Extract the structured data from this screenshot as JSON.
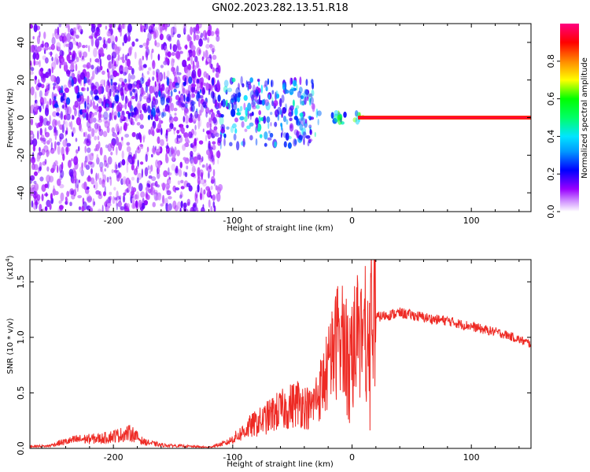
{
  "title": "GN02.2023.282.13.51.R18",
  "chart_data": [
    {
      "type": "heatmap",
      "xlabel": "Height of straight line (km)",
      "ylabel": "Frequency (Hz)",
      "xlim": [
        -270,
        150
      ],
      "ylim": [
        -50,
        50
      ],
      "xticks": [
        -200,
        -100,
        0,
        100
      ],
      "yticks": [
        -40,
        -20,
        0,
        20,
        40
      ],
      "xtick_labels": [
        "-200",
        "-100",
        "0",
        "100"
      ],
      "ytick_labels": [
        "-40",
        "-20",
        "0",
        "20",
        "40"
      ],
      "colorbar": {
        "label": "Normalized spectral amplitude",
        "range": [
          0,
          1
        ],
        "ticks": [
          0.0,
          0.2,
          0.4,
          0.6,
          0.8
        ],
        "tick_labels": [
          "0.0",
          "0.2",
          "0.4",
          "0.6",
          "0.8"
        ],
        "colors": [
          "#ffffff",
          "#9900ff",
          "#0000ff",
          "#00e5ff",
          "#00ff00",
          "#ffff00",
          "#ff8800",
          "#ff0000",
          "#ff0080"
        ]
      },
      "regions": [
        {
          "x": [
            -270,
            -110
          ],
          "freq": [
            -50,
            50
          ],
          "amplitude": 0.15
        },
        {
          "x": [
            -250,
            -110
          ],
          "freq": [
            0,
            20
          ],
          "amplitude": 0.25
        },
        {
          "x": [
            -110,
            -30
          ],
          "freq": [
            -15,
            20
          ],
          "amplitude": 0.35
        },
        {
          "x": [
            -30,
            10
          ],
          "freq": [
            -3,
            3
          ],
          "amplitude": 0.5
        },
        {
          "x": [
            5,
            150
          ],
          "freq": [
            -1,
            1
          ],
          "amplitude": 0.85
        }
      ],
      "grid": false
    },
    {
      "type": "line",
      "xlabel": "Height of straight line (km)",
      "ylabel": "SNR (10 * v/v)",
      "y_scale_label": "(x10",
      "y_scale_exp": "4",
      "y_scale_close": ")",
      "xlim": [
        -270,
        150
      ],
      "ylim": [
        0,
        1.7
      ],
      "xticks": [
        -200,
        -100,
        0,
        100
      ],
      "yticks": [
        0.0,
        0.5,
        1.0,
        1.5
      ],
      "xtick_labels": [
        "-200",
        "-100",
        "0",
        "100"
      ],
      "ytick_labels": [
        "0.0",
        "0.5",
        "1.0",
        "1.5"
      ],
      "color": "#ee2a24",
      "series": [
        {
          "x": [
            -270,
            -255,
            -245,
            -230,
            -210,
            -195,
            -185,
            -175,
            -160,
            -140,
            -120,
            -105,
            -95,
            -85,
            -75,
            -65,
            -55,
            -45,
            -35,
            -28,
            -22,
            -18,
            -14,
            -10,
            -7,
            -4,
            0,
            5,
            10,
            15,
            20,
            30,
            40,
            50,
            60,
            70,
            80,
            90,
            100,
            110,
            120,
            130,
            140,
            150
          ],
          "y": [
            0.02,
            0.02,
            0.05,
            0.08,
            0.09,
            0.12,
            0.14,
            0.06,
            0.03,
            0.02,
            0.01,
            0.05,
            0.12,
            0.2,
            0.25,
            0.32,
            0.36,
            0.42,
            0.35,
            0.5,
            0.65,
            0.78,
            0.9,
            1.15,
            0.95,
            0.85,
            0.98,
            1.0,
            1.05,
            1.12,
            1.18,
            1.2,
            1.22,
            1.2,
            1.18,
            1.16,
            1.15,
            1.12,
            1.1,
            1.07,
            1.05,
            1.02,
            0.98,
            0.94
          ]
        }
      ],
      "grid": false
    }
  ]
}
